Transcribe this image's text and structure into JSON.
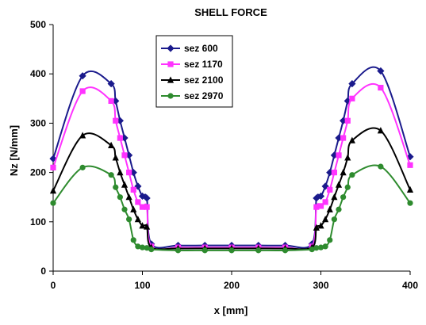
{
  "chart_data": {
    "type": "line",
    "title": "SHELL FORCE",
    "xlabel": "x [mm]",
    "ylabel": "Nz [N/mm]",
    "xlim": [
      0,
      400
    ],
    "ylim": [
      0,
      500
    ],
    "xticks": [
      0,
      100,
      200,
      300,
      400
    ],
    "yticks": [
      0,
      100,
      200,
      300,
      400,
      500
    ],
    "grid": false,
    "legend_position": "top-left",
    "series": [
      {
        "name": "sez 600",
        "color": "#1a1a8c",
        "marker": "diamond",
        "points": [
          [
            0,
            228
          ],
          [
            33,
            396
          ],
          [
            65,
            380
          ],
          [
            70,
            345
          ],
          [
            75,
            305
          ],
          [
            80,
            270
          ],
          [
            85,
            235
          ],
          [
            90,
            200
          ],
          [
            95,
            172
          ],
          [
            100,
            152
          ],
          [
            105,
            148
          ],
          [
            110,
            55
          ],
          [
            140,
            52
          ],
          [
            170,
            52
          ],
          [
            200,
            52
          ],
          [
            230,
            52
          ],
          [
            260,
            52
          ],
          [
            290,
            55
          ],
          [
            295,
            148
          ],
          [
            300,
            152
          ],
          [
            305,
            172
          ],
          [
            310,
            200
          ],
          [
            315,
            235
          ],
          [
            320,
            270
          ],
          [
            325,
            305
          ],
          [
            330,
            345
          ],
          [
            335,
            380
          ],
          [
            367,
            406
          ],
          [
            400,
            232
          ]
        ]
      },
      {
        "name": "sez 1170",
        "color": "#ff33ff",
        "marker": "square",
        "points": [
          [
            0,
            210
          ],
          [
            33,
            365
          ],
          [
            65,
            345
          ],
          [
            70,
            305
          ],
          [
            75,
            270
          ],
          [
            80,
            235
          ],
          [
            85,
            200
          ],
          [
            90,
            165
          ],
          [
            95,
            140
          ],
          [
            100,
            130
          ],
          [
            105,
            130
          ],
          [
            110,
            50
          ],
          [
            140,
            48
          ],
          [
            170,
            48
          ],
          [
            200,
            48
          ],
          [
            230,
            48
          ],
          [
            260,
            48
          ],
          [
            290,
            50
          ],
          [
            295,
            130
          ],
          [
            300,
            132
          ],
          [
            305,
            140
          ],
          [
            310,
            165
          ],
          [
            315,
            200
          ],
          [
            320,
            235
          ],
          [
            325,
            270
          ],
          [
            330,
            305
          ],
          [
            335,
            350
          ],
          [
            367,
            372
          ],
          [
            400,
            215
          ]
        ]
      },
      {
        "name": "sez 2100",
        "color": "#000000",
        "marker": "triangle",
        "points": [
          [
            0,
            163
          ],
          [
            33,
            275
          ],
          [
            65,
            255
          ],
          [
            70,
            230
          ],
          [
            75,
            200
          ],
          [
            80,
            175
          ],
          [
            85,
            150
          ],
          [
            90,
            125
          ],
          [
            95,
            105
          ],
          [
            100,
            92
          ],
          [
            105,
            90
          ],
          [
            110,
            48
          ],
          [
            140,
            46
          ],
          [
            170,
            46
          ],
          [
            200,
            46
          ],
          [
            230,
            46
          ],
          [
            260,
            46
          ],
          [
            290,
            48
          ],
          [
            295,
            88
          ],
          [
            300,
            92
          ],
          [
            305,
            105
          ],
          [
            310,
            125
          ],
          [
            315,
            150
          ],
          [
            320,
            175
          ],
          [
            325,
            200
          ],
          [
            330,
            230
          ],
          [
            335,
            265
          ],
          [
            367,
            285
          ],
          [
            400,
            165
          ]
        ]
      },
      {
        "name": "sez 2970",
        "color": "#2e8b2e",
        "marker": "circle",
        "points": [
          [
            0,
            138
          ],
          [
            33,
            210
          ],
          [
            65,
            195
          ],
          [
            70,
            170
          ],
          [
            75,
            150
          ],
          [
            80,
            125
          ],
          [
            85,
            105
          ],
          [
            90,
            63
          ],
          [
            95,
            50
          ],
          [
            100,
            48
          ],
          [
            105,
            47
          ],
          [
            110,
            44
          ],
          [
            140,
            42
          ],
          [
            170,
            42
          ],
          [
            200,
            42
          ],
          [
            230,
            42
          ],
          [
            260,
            42
          ],
          [
            290,
            44
          ],
          [
            295,
            47
          ],
          [
            300,
            48
          ],
          [
            305,
            50
          ],
          [
            310,
            63
          ],
          [
            315,
            105
          ],
          [
            320,
            125
          ],
          [
            325,
            150
          ],
          [
            330,
            170
          ],
          [
            335,
            195
          ],
          [
            367,
            212
          ],
          [
            400,
            138
          ]
        ]
      }
    ]
  }
}
